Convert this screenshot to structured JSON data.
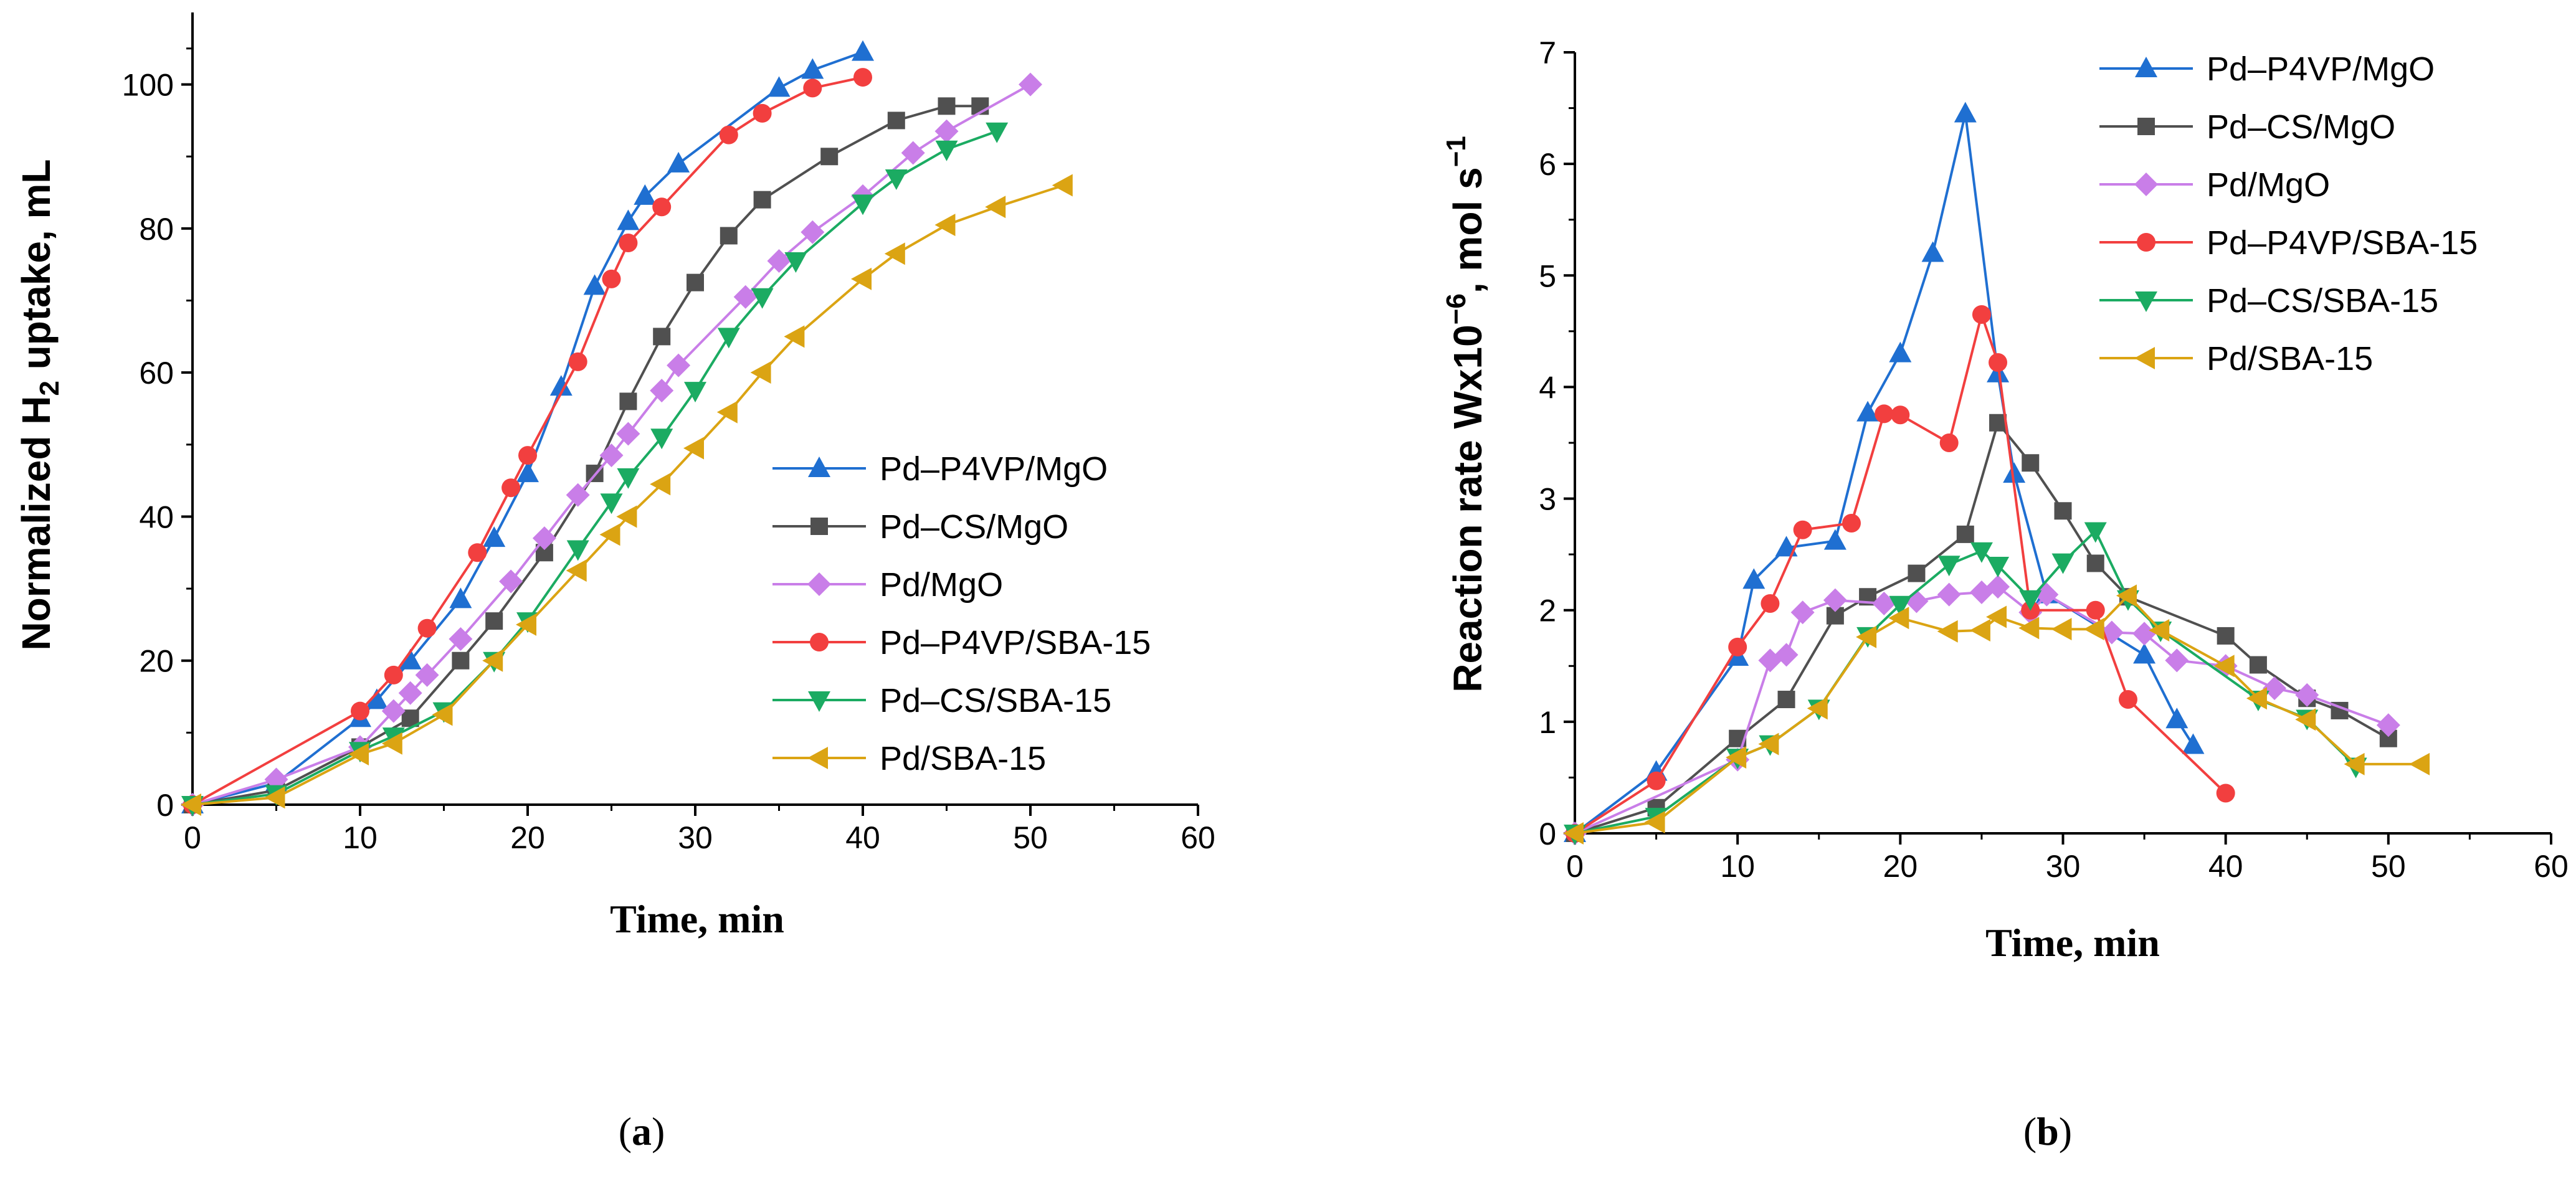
{
  "chart_data": [
    {
      "type": "line",
      "panel_label": {
        "open": "(",
        "letter": "a",
        "close": ")"
      },
      "xlabel": "Time, min",
      "ylabel": {
        "pre": "Normalized H",
        "sub": "2",
        "post": " uptake, mL"
      },
      "xlim": [
        0,
        60
      ],
      "ylim": [
        0,
        110
      ],
      "xticks": [
        0,
        10,
        20,
        30,
        40,
        50,
        60
      ],
      "yticks": [
        0,
        20,
        40,
        60,
        80,
        100
      ],
      "grid": false,
      "legend_position": "lower-right",
      "series": [
        {
          "name": "Pd–P4VP/MgO",
          "color": "#1f6fd1",
          "marker": "triangle-up",
          "x": [
            0,
            5,
            10,
            11,
            13,
            16,
            18,
            20,
            22,
            24,
            26,
            27,
            29,
            35,
            37,
            40
          ],
          "y": [
            0,
            3,
            12,
            14.5,
            20,
            28.5,
            37,
            46,
            58,
            72,
            81,
            84.5,
            89,
            99.5,
            102,
            104.5
          ]
        },
        {
          "name": "Pd–CS/MgO",
          "color": "#505050",
          "marker": "square",
          "x": [
            0,
            5,
            10,
            13,
            16,
            18,
            21,
            24,
            26,
            28,
            30,
            32,
            34,
            38,
            42,
            45,
            47
          ],
          "y": [
            0,
            2,
            8,
            12,
            20,
            25.5,
            35,
            46,
            56,
            65,
            72.5,
            79,
            84,
            90,
            95,
            97,
            97
          ]
        },
        {
          "name": "Pd/MgO",
          "color": "#c97ee8",
          "marker": "diamond",
          "x": [
            0,
            5,
            10,
            12,
            13,
            14,
            16,
            19,
            21,
            23,
            25,
            26,
            28,
            29,
            33,
            35,
            37,
            40,
            43,
            45,
            50
          ],
          "y": [
            0,
            3.5,
            8,
            13,
            15.5,
            18,
            23,
            31,
            37,
            43,
            48.5,
            51.5,
            57.5,
            61,
            70.5,
            75.5,
            79.5,
            84.5,
            90.5,
            93.5,
            100
          ]
        },
        {
          "name": "Pd–P4VP/SBA-15",
          "color": "#f23f3f",
          "marker": "circle",
          "x": [
            0,
            10,
            12,
            14,
            17,
            19,
            20,
            23,
            25,
            26,
            28,
            32,
            34,
            37,
            40
          ],
          "y": [
            0,
            13,
            18,
            24.5,
            35,
            44,
            48.5,
            61.5,
            73,
            78,
            83,
            93,
            96,
            99.5,
            101
          ]
        },
        {
          "name": "Pd–CS/SBA-15",
          "color": "#1bab62",
          "marker": "triangle-down",
          "x": [
            0,
            5,
            10,
            12,
            15,
            18,
            20,
            23,
            25,
            26,
            28,
            30,
            32,
            34,
            36,
            40,
            42,
            45,
            48
          ],
          "y": [
            0,
            1.5,
            7.5,
            9.5,
            13,
            20,
            25.5,
            35.5,
            42,
            45.5,
            51,
            57.5,
            65,
            70.5,
            75.5,
            83.5,
            87,
            91,
            93.5
          ]
        },
        {
          "name": "Pd/SBA-15",
          "color": "#dba413",
          "marker": "triangle-left",
          "x": [
            0,
            5,
            10,
            12,
            15,
            18,
            20,
            23,
            25,
            26,
            28,
            30,
            32,
            34,
            36,
            40,
            42,
            45,
            48,
            52
          ],
          "y": [
            0,
            1,
            7,
            8.5,
            12.5,
            20,
            25,
            32.5,
            37.5,
            40,
            44.5,
            49.5,
            54.5,
            60,
            65,
            73,
            76.5,
            80.5,
            83,
            86
          ]
        }
      ]
    },
    {
      "type": "line",
      "panel_label": {
        "open": "(",
        "letter": "b",
        "close": ")"
      },
      "xlabel": "Time, min",
      "ylabel": {
        "pre": "Reaction rate Wx10",
        "sup1": "−6",
        "mid": ", mol s",
        "sup2": "−1"
      },
      "xlim": [
        0,
        60
      ],
      "ylim": [
        0,
        7
      ],
      "xticks": [
        0,
        10,
        20,
        30,
        40,
        50,
        60
      ],
      "yticks": [
        0,
        1,
        2,
        3,
        4,
        5,
        6,
        7
      ],
      "grid": false,
      "legend_position": "top-right",
      "series": [
        {
          "name": "Pd–P4VP/MgO",
          "color": "#1f6fd1",
          "marker": "triangle-up",
          "x": [
            0,
            5,
            10,
            11,
            13,
            16,
            18,
            20,
            22,
            24,
            26,
            27,
            29,
            35,
            37,
            38
          ],
          "y": [
            0,
            0.55,
            1.58,
            2.27,
            2.56,
            2.62,
            3.77,
            4.3,
            5.2,
            6.45,
            4.12,
            3.22,
            2.14,
            1.6,
            1.02,
            0.79
          ]
        },
        {
          "name": "Pd–CS/MgO",
          "color": "#505050",
          "marker": "square",
          "x": [
            0,
            5,
            10,
            13,
            16,
            18,
            21,
            24,
            26,
            28,
            30,
            32,
            34,
            40,
            42,
            45,
            47,
            50
          ],
          "y": [
            0,
            0.23,
            0.85,
            1.2,
            1.95,
            2.12,
            2.33,
            2.68,
            3.68,
            3.32,
            2.89,
            2.42,
            2.12,
            1.77,
            1.51,
            1.21,
            1.1,
            0.85
          ]
        },
        {
          "name": "Pd/MgO",
          "color": "#c97ee8",
          "marker": "diamond",
          "x": [
            0,
            10,
            12,
            13,
            14,
            16,
            19,
            21,
            23,
            25,
            26,
            28,
            29,
            33,
            35,
            37,
            40,
            43,
            45,
            50
          ],
          "y": [
            0,
            0.66,
            1.55,
            1.6,
            1.98,
            2.09,
            2.06,
            2.08,
            2.14,
            2.16,
            2.21,
            1.98,
            2.14,
            1.8,
            1.79,
            1.55,
            1.5,
            1.3,
            1.24,
            0.97
          ]
        },
        {
          "name": "Pd–P4VP/SBA-15",
          "color": "#f23f3f",
          "marker": "circle",
          "x": [
            0,
            5,
            10,
            12,
            14,
            17,
            19,
            20,
            23,
            25,
            26,
            28,
            32,
            34,
            40
          ],
          "y": [
            0,
            0.47,
            1.67,
            2.06,
            2.72,
            2.78,
            3.76,
            3.75,
            3.5,
            4.65,
            4.22,
            2.0,
            2.0,
            1.2,
            0.36
          ]
        },
        {
          "name": "Pd–CS/SBA-15",
          "color": "#1bab62",
          "marker": "triangle-down",
          "x": [
            0,
            5,
            10,
            12,
            15,
            18,
            20,
            23,
            25,
            26,
            28,
            30,
            32,
            34,
            36,
            42,
            45,
            48
          ],
          "y": [
            0,
            0.15,
            0.68,
            0.8,
            1.12,
            1.77,
            2.05,
            2.41,
            2.53,
            2.4,
            2.1,
            2.43,
            2.71,
            2.1,
            1.82,
            1.2,
            1.03,
            0.6
          ]
        },
        {
          "name": "Pd/SBA-15",
          "color": "#dba413",
          "marker": "triangle-left",
          "x": [
            0,
            5,
            10,
            12,
            15,
            18,
            20,
            23,
            25,
            26,
            28,
            30,
            32,
            34,
            36,
            40,
            42,
            45,
            48,
            52
          ],
          "y": [
            0,
            0.1,
            0.68,
            0.8,
            1.12,
            1.76,
            1.93,
            1.81,
            1.82,
            1.94,
            1.84,
            1.83,
            1.83,
            2.13,
            1.82,
            1.5,
            1.21,
            1.02,
            0.62,
            0.62
          ]
        }
      ]
    }
  ]
}
